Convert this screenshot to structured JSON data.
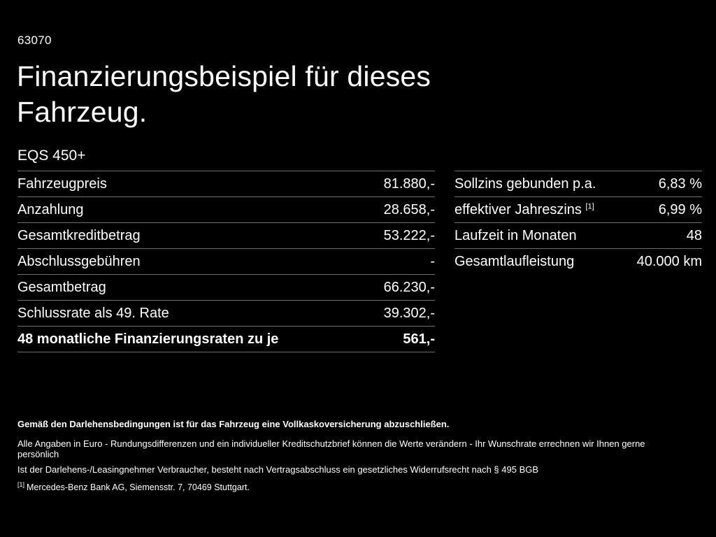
{
  "page": {
    "code": "63070",
    "title_line1": "Finanzierungsbeispiel für dieses",
    "title_line2": "Fahrzeug.",
    "model": "EQS 450+"
  },
  "left_table": {
    "rows": [
      {
        "label": "Fahrzeugpreis",
        "value": "81.880,-"
      },
      {
        "label": "Anzahlung",
        "value": "28.658,-"
      },
      {
        "label": "Gesamtkreditbetrag",
        "value": "53.222,-"
      },
      {
        "label": "Abschlussgebühren",
        "value": "-"
      },
      {
        "label": "Gesamtbetrag",
        "value": "66.230,-"
      },
      {
        "label": "Schlussrate als 49. Rate",
        "value": "39.302,-"
      },
      {
        "label": "48 monatliche Finanzierungsraten zu je",
        "value": "561,-"
      }
    ]
  },
  "right_table": {
    "rows": [
      {
        "label": "Sollzins gebunden p.a.",
        "value": "6,83 %"
      },
      {
        "label": "effektiver Jahreszins",
        "sup": "[1]",
        "value": "6,99 %"
      },
      {
        "label": "Laufzeit in Monaten",
        "value": "48"
      },
      {
        "label": "Gesamtlaufleistung",
        "value": "40.000 km"
      }
    ]
  },
  "footer": {
    "bold_line": "Gemäß den Darlehensbedingungen ist für das Fahrzeug eine Vollkaskoversicherung abzuschließen.",
    "line2": "Alle Angaben in Euro - Rundungsdifferenzen und ein individueller Kreditschutzbrief können die Werte verändern - Ihr Wunschrate errechnen wir Ihnen gerne persönlich",
    "line3": "Ist der Darlehens-/Leasingnehmer Verbraucher, besteht nach Vertragsabschluss ein gesetzliches Widerrufsrecht nach § 495 BGB",
    "note_marker": "[1]",
    "note_text": "Mercedes-Benz Bank AG, Siemensstr. 7, 70469 Stuttgart."
  }
}
